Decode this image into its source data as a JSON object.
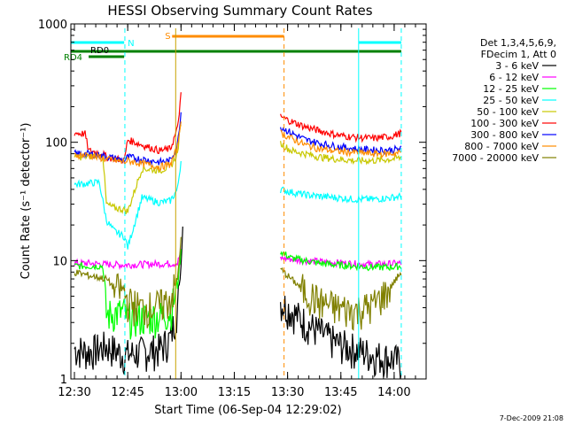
{
  "chart_data": {
    "type": "line",
    "title": "HESSI Observing Summary Count Rates",
    "xlabel": "Start Time (06-Sep-04 12:29:02)",
    "ylabel": "Count Rate (s⁻¹ detector⁻¹)",
    "y_scale": "log",
    "ylim": [
      1,
      1000
    ],
    "xlim_minutes": [
      0,
      100
    ],
    "x_tick_labels": [
      "12:30",
      "12:45",
      "13:00",
      "13:15",
      "13:30",
      "13:45",
      "14:00"
    ],
    "x_tick_minutes": [
      1,
      16,
      31,
      46,
      61,
      76,
      91
    ],
    "y_tick_labels": [
      "1",
      "10",
      "100",
      "1000"
    ],
    "y_tick_values": [
      1,
      10,
      100,
      1000
    ],
    "grid": false,
    "legend_position": "right",
    "legend_header": [
      "Det 1,3,4,5,6,9,",
      "FDecim 1, Att 0"
    ],
    "series": [
      {
        "name": "3 - 6 keV",
        "color": "#000000",
        "segments": [
          {
            "x": [
              1,
              5,
              10,
              15,
              20,
              25,
              28,
              30,
              31,
              31.5
            ],
            "y": [
              1.8,
              1.7,
              1.9,
              1.6,
              1.7,
              1.8,
              2.2,
              4,
              9,
              20
            ]
          },
          {
            "x": [
              59,
              62,
              66,
              70,
              75,
              80,
              85,
              90,
              93
            ],
            "y": [
              4.5,
              3.8,
              3.0,
              2.5,
              2.0,
              1.8,
              1.6,
              1.5,
              1.4
            ]
          }
        ]
      },
      {
        "name": "6 - 12 keV",
        "color": "#ff00ff",
        "segments": [
          {
            "x": [
              1,
              5,
              10,
              15,
              20,
              25,
              30,
              31
            ],
            "y": [
              9.5,
              9.5,
              9.3,
              9.2,
              9.3,
              9.4,
              9.5,
              12
            ]
          },
          {
            "x": [
              59,
              62,
              66,
              70,
              75,
              80,
              85,
              90,
              93
            ],
            "y": [
              10.5,
              10.3,
              10.0,
              9.8,
              9.6,
              9.4,
              9.3,
              9.4,
              9.5
            ]
          }
        ]
      },
      {
        "name": "12 - 25 keV",
        "color": "#00ff00",
        "segments": [
          {
            "x": [
              1,
              5,
              9,
              10,
              12,
              15,
              16,
              20,
              25,
              28,
              30,
              31
            ],
            "y": [
              9.0,
              9.0,
              9.0,
              3.5,
              3.6,
              3.7,
              3.3,
              3.3,
              3.4,
              3.7,
              6,
              12
            ]
          },
          {
            "x": [
              59,
              62,
              66,
              70,
              75,
              80,
              85,
              90,
              93
            ],
            "y": [
              12,
              10.5,
              10.0,
              9.5,
              9.2,
              9.0,
              8.8,
              8.8,
              9.0
            ]
          }
        ]
      },
      {
        "name": "25 - 50 keV",
        "color": "#00ffff",
        "segments": [
          {
            "x": [
              1,
              5,
              8,
              10,
              12,
              15,
              16,
              20,
              25,
              28,
              30,
              31
            ],
            "y": [
              44,
              45,
              46,
              22,
              18,
              16,
              13,
              34,
              31,
              32,
              40,
              70
            ]
          },
          {
            "x": [
              59,
              62,
              66,
              70,
              75,
              80,
              85,
              90,
              93
            ],
            "y": [
              40,
              38,
              36,
              35,
              34,
              33,
              33,
              34,
              35
            ]
          }
        ]
      },
      {
        "name": "50 - 100 keV",
        "color": "#c8c800",
        "segments": [
          {
            "x": [
              1,
              5,
              9,
              10,
              12,
              15,
              16,
              20,
              25,
              28,
              30,
              31
            ],
            "y": [
              75,
              76,
              78,
              30,
              28,
              27,
              26,
              60,
              58,
              62,
              80,
              150
            ]
          },
          {
            "x": [
              59,
              62,
              66,
              70,
              75,
              80,
              85,
              90,
              93
            ],
            "y": [
              98,
              85,
              80,
              75,
              72,
              70,
              70,
              72,
              74
            ]
          }
        ]
      },
      {
        "name": "100 - 300 keV",
        "color": "#ff0000",
        "segments": [
          {
            "x": [
              1,
              4,
              5,
              9,
              10,
              15,
              16,
              20,
              25,
              28,
              30,
              31
            ],
            "y": [
              120,
              118,
              85,
              80,
              75,
              70,
              105,
              95,
              85,
              88,
              130,
              250
            ]
          },
          {
            "x": [
              59,
              62,
              66,
              70,
              75,
              80,
              85,
              90,
              93
            ],
            "y": [
              165,
              150,
              135,
              125,
              115,
              110,
              108,
              112,
              120
            ]
          }
        ]
      },
      {
        "name": "300 - 800 keV",
        "color": "#0000ff",
        "segments": [
          {
            "x": [
              1,
              5,
              10,
              15,
              16,
              20,
              25,
              28,
              30,
              31
            ],
            "y": [
              80,
              80,
              76,
              70,
              75,
              72,
              68,
              70,
              95,
              180
            ]
          },
          {
            "x": [
              59,
              62,
              66,
              70,
              75,
              80,
              85,
              90,
              93
            ],
            "y": [
              135,
              120,
              105,
              98,
              92,
              88,
              86,
              86,
              88
            ]
          }
        ]
      },
      {
        "name": "800 - 7000 keV",
        "color": "#ff8c00",
        "segments": [
          {
            "x": [
              1,
              5,
              10,
              15,
              16,
              20,
              25,
              28,
              30,
              31
            ],
            "y": [
              78,
              78,
              72,
              68,
              70,
              66,
              62,
              65,
              90,
              160
            ]
          },
          {
            "x": [
              59,
              62,
              66,
              70,
              75,
              80,
              85,
              90,
              93
            ],
            "y": [
              120,
              108,
              95,
              88,
              84,
              82,
              80,
              80,
              82
            ]
          }
        ]
      },
      {
        "name": "7000 - 20000 keV",
        "color": "#808000",
        "segments": [
          {
            "x": [
              1,
              5,
              10,
              12,
              15,
              16,
              20,
              25,
              28,
              30,
              31
            ],
            "y": [
              8,
              7.5,
              7.0,
              6.0,
              5.5,
              4.5,
              4.0,
              4.2,
              4.8,
              7,
              15
            ]
          },
          {
            "x": [
              59,
              62,
              66,
              70,
              75,
              80,
              85,
              90,
              93
            ],
            "y": [
              8.5,
              7,
              5.5,
              4.5,
              4.0,
              3.8,
              4.2,
              6.0,
              8.0
            ]
          }
        ]
      }
    ],
    "annotations": {
      "saa_label": "S",
      "night_label": "N",
      "rd0_label": "RD0",
      "rd4_label": "RD4",
      "timestamp": "7-Dec-2009 21:08"
    },
    "intervals": {
      "saa": {
        "start": 28.5,
        "end": 60,
        "color": "#ff8c00"
      },
      "night_1": {
        "start": 0,
        "end": 15,
        "color": "#00ffff"
      },
      "night_2": {
        "start": 81,
        "end": 93,
        "color": "#00ffff"
      },
      "rd0": {
        "start": 5,
        "end": 15,
        "color": "#008000"
      },
      "rd4": {
        "start": 0,
        "end": 93,
        "color": "#008000"
      }
    },
    "vlines": [
      {
        "x": 0,
        "color": "#00ffff",
        "dash": false
      },
      {
        "x": 15.2,
        "color": "#00ffff",
        "dash": true
      },
      {
        "x": 29.5,
        "color": "#c8a000",
        "dash": false
      },
      {
        "x": 60,
        "color": "#ff8c00",
        "dash": true
      },
      {
        "x": 81,
        "color": "#00ffff",
        "dash": false
      },
      {
        "x": 93,
        "color": "#00ffff",
        "dash": true
      }
    ]
  }
}
